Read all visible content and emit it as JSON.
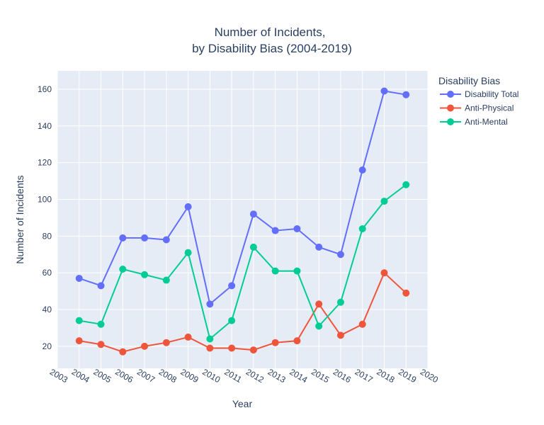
{
  "chart_data": {
    "type": "line",
    "title_line1": "Number of Incidents,",
    "title_line2": "by Disability Bias (2004-2019)",
    "xlabel": "Year",
    "ylabel": "Number of Incidents",
    "x": [
      2004,
      2005,
      2006,
      2007,
      2008,
      2009,
      2010,
      2011,
      2012,
      2013,
      2014,
      2015,
      2016,
      2017,
      2018,
      2019
    ],
    "xlim": [
      2003,
      2020
    ],
    "ylim": [
      8,
      170
    ],
    "x_ticks": [
      "2003",
      "2004",
      "2005",
      "2006",
      "2007",
      "2008",
      "2009",
      "2010",
      "2011",
      "2012",
      "2013",
      "2014",
      "2015",
      "2016",
      "2017",
      "2018",
      "2019",
      "2020"
    ],
    "y_ticks": [
      20,
      40,
      60,
      80,
      100,
      120,
      140,
      160
    ],
    "grid": true,
    "legend_title": "Disability Bias",
    "legend_position": "top-right",
    "series": [
      {
        "name": "Disability Total",
        "color": "#636efa",
        "values": [
          57,
          53,
          79,
          79,
          78,
          96,
          43,
          53,
          92,
          83,
          84,
          74,
          70,
          116,
          159,
          157
        ]
      },
      {
        "name": "Anti-Physical",
        "color": "#ef553b",
        "values": [
          23,
          21,
          17,
          20,
          22,
          25,
          19,
          19,
          18,
          22,
          23,
          43,
          26,
          32,
          60,
          49
        ]
      },
      {
        "name": "Anti-Mental",
        "color": "#00cc96",
        "values": [
          34,
          32,
          62,
          59,
          56,
          71,
          24,
          34,
          74,
          61,
          61,
          31,
          44,
          84,
          99,
          108
        ]
      }
    ]
  }
}
